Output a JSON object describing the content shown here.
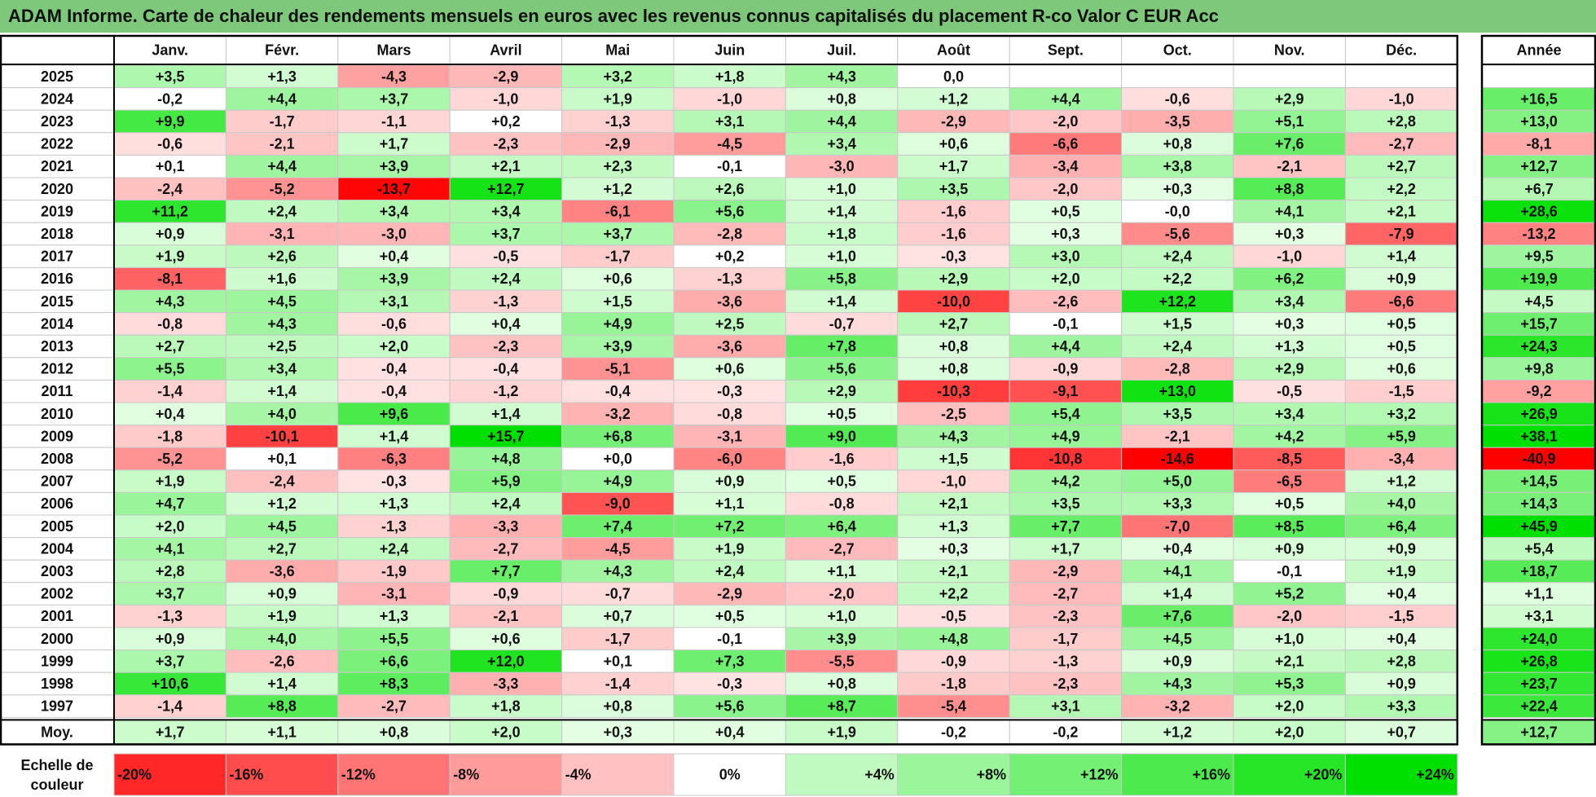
{
  "title": "ADAM Informe. Carte de chaleur des rendements mensuels en euros avec les revenus connus capitalisés du placement R-co Valor C EUR Acc",
  "chart_data": {
    "type": "heatmap",
    "title": "ADAM Informe. Carte de chaleur des rendements mensuels en euros avec les revenus connus capitalisés du placement R-co Valor C EUR Acc",
    "columns": [
      "Janv.",
      "Févr.",
      "Mars",
      "Avril",
      "Mai",
      "Juin",
      "Juil.",
      "Août",
      "Sept.",
      "Oct.",
      "Nov.",
      "Déc."
    ],
    "year_column_label": "Année",
    "average_row_label": "Moy.",
    "rows": [
      {
        "year": "2025",
        "values": [
          "+3,5",
          "+1,3",
          "-4,3",
          "-2,9",
          "+3,2",
          "+1,8",
          "+4,3",
          "0,0",
          "",
          "",
          "",
          ""
        ],
        "annual": ""
      },
      {
        "year": "2024",
        "values": [
          "-0,2",
          "+4,4",
          "+3,7",
          "-1,0",
          "+1,9",
          "-1,0",
          "+0,8",
          "+1,2",
          "+4,4",
          "-0,6",
          "+2,9",
          "-1,0"
        ],
        "annual": "+16,5"
      },
      {
        "year": "2023",
        "values": [
          "+9,9",
          "-1,7",
          "-1,1",
          "+0,2",
          "-1,3",
          "+3,1",
          "+4,4",
          "-2,9",
          "-2,0",
          "-3,5",
          "+5,1",
          "+2,8"
        ],
        "annual": "+13,0"
      },
      {
        "year": "2022",
        "values": [
          "-0,6",
          "-2,1",
          "+1,7",
          "-2,3",
          "-2,9",
          "-4,5",
          "+3,4",
          "+0,6",
          "-6,6",
          "+0,8",
          "+7,6",
          "-2,7"
        ],
        "annual": "-8,1"
      },
      {
        "year": "2021",
        "values": [
          "+0,1",
          "+4,4",
          "+3,9",
          "+2,1",
          "+2,3",
          "-0,1",
          "-3,0",
          "+1,7",
          "-3,4",
          "+3,8",
          "-2,1",
          "+2,7"
        ],
        "annual": "+12,7"
      },
      {
        "year": "2020",
        "values": [
          "-2,4",
          "-5,2",
          "-13,7",
          "+12,7",
          "+1,2",
          "+2,6",
          "+1,0",
          "+3,5",
          "-2,0",
          "+0,3",
          "+8,8",
          "+2,2"
        ],
        "annual": "+6,7"
      },
      {
        "year": "2019",
        "values": [
          "+11,2",
          "+2,4",
          "+3,4",
          "+3,4",
          "-6,1",
          "+5,6",
          "+1,4",
          "-1,6",
          "+0,5",
          "-0,0",
          "+4,1",
          "+2,1"
        ],
        "annual": "+28,6"
      },
      {
        "year": "2018",
        "values": [
          "+0,9",
          "-3,1",
          "-3,0",
          "+3,7",
          "+3,7",
          "-2,8",
          "+1,8",
          "-1,6",
          "+0,3",
          "-5,6",
          "+0,3",
          "-7,9"
        ],
        "annual": "-13,2"
      },
      {
        "year": "2017",
        "values": [
          "+1,9",
          "+2,6",
          "+0,4",
          "-0,5",
          "-1,7",
          "+0,2",
          "+1,0",
          "-0,3",
          "+3,0",
          "+2,4",
          "-1,0",
          "+1,4"
        ],
        "annual": "+9,5"
      },
      {
        "year": "2016",
        "values": [
          "-8,1",
          "+1,6",
          "+3,9",
          "+2,4",
          "+0,6",
          "-1,3",
          "+5,8",
          "+2,9",
          "+2,0",
          "+2,2",
          "+6,2",
          "+0,9"
        ],
        "annual": "+19,9"
      },
      {
        "year": "2015",
        "values": [
          "+4,3",
          "+4,5",
          "+3,1",
          "-1,3",
          "+1,5",
          "-3,6",
          "+1,4",
          "-10,0",
          "-2,6",
          "+12,2",
          "+3,4",
          "-6,6"
        ],
        "annual": "+4,5"
      },
      {
        "year": "2014",
        "values": [
          "-0,8",
          "+4,3",
          "-0,6",
          "+0,4",
          "+4,9",
          "+2,5",
          "-0,7",
          "+2,7",
          "-0,1",
          "+1,5",
          "+0,3",
          "+0,5"
        ],
        "annual": "+15,7"
      },
      {
        "year": "2013",
        "values": [
          "+2,7",
          "+2,5",
          "+2,0",
          "-2,3",
          "+3,9",
          "-3,6",
          "+7,8",
          "+0,8",
          "+4,4",
          "+2,4",
          "+1,3",
          "+0,5"
        ],
        "annual": "+24,3"
      },
      {
        "year": "2012",
        "values": [
          "+5,5",
          "+3,4",
          "-0,4",
          "-0,4",
          "-5,1",
          "+0,6",
          "+5,6",
          "+0,8",
          "-0,9",
          "-2,8",
          "+2,9",
          "+0,6"
        ],
        "annual": "+9,8"
      },
      {
        "year": "2011",
        "values": [
          "-1,4",
          "+1,4",
          "-0,4",
          "-1,2",
          "-0,4",
          "-0,3",
          "+2,9",
          "-10,3",
          "-9,1",
          "+13,0",
          "-0,5",
          "-1,5"
        ],
        "annual": "-9,2"
      },
      {
        "year": "2010",
        "values": [
          "+0,4",
          "+4,0",
          "+9,6",
          "+1,4",
          "-3,2",
          "-0,8",
          "+0,5",
          "-2,5",
          "+5,4",
          "+3,5",
          "+3,4",
          "+3,2"
        ],
        "annual": "+26,9"
      },
      {
        "year": "2009",
        "values": [
          "-1,8",
          "-10,1",
          "+1,4",
          "+15,7",
          "+6,8",
          "-3,1",
          "+9,0",
          "+4,3",
          "+4,9",
          "-2,1",
          "+4,2",
          "+5,9"
        ],
        "annual": "+38,1"
      },
      {
        "year": "2008",
        "values": [
          "-5,2",
          "+0,1",
          "-6,3",
          "+4,8",
          "+0,0",
          "-6,0",
          "-1,6",
          "+1,5",
          "-10,8",
          "-14,6",
          "-8,5",
          "-3,4"
        ],
        "annual": "-40,9"
      },
      {
        "year": "2007",
        "values": [
          "+1,9",
          "-2,4",
          "-0,3",
          "+5,9",
          "+4,9",
          "+0,9",
          "+0,5",
          "-1,0",
          "+4,2",
          "+5,0",
          "-6,5",
          "+1,2"
        ],
        "annual": "+14,5"
      },
      {
        "year": "2006",
        "values": [
          "+4,7",
          "+1,2",
          "+1,3",
          "+2,4",
          "-9,0",
          "+1,1",
          "-0,8",
          "+2,1",
          "+3,5",
          "+3,3",
          "+0,5",
          "+4,0"
        ],
        "annual": "+14,3"
      },
      {
        "year": "2005",
        "values": [
          "+2,0",
          "+4,5",
          "-1,3",
          "-3,3",
          "+7,4",
          "+7,2",
          "+6,4",
          "+1,3",
          "+7,7",
          "-7,0",
          "+8,5",
          "+6,4"
        ],
        "annual": "+45,9"
      },
      {
        "year": "2004",
        "values": [
          "+4,1",
          "+2,7",
          "+2,4",
          "-2,7",
          "-4,5",
          "+1,9",
          "-2,7",
          "+0,3",
          "+1,7",
          "+0,4",
          "+0,9",
          "+0,9"
        ],
        "annual": "+5,4"
      },
      {
        "year": "2003",
        "values": [
          "+2,8",
          "-3,6",
          "-1,9",
          "+7,7",
          "+4,3",
          "+2,4",
          "+1,1",
          "+2,1",
          "-2,9",
          "+4,1",
          "-0,1",
          "+1,9"
        ],
        "annual": "+18,7"
      },
      {
        "year": "2002",
        "values": [
          "+3,7",
          "+0,9",
          "-3,1",
          "-0,9",
          "-0,7",
          "-2,9",
          "-2,0",
          "+2,2",
          "-2,7",
          "+1,4",
          "+5,2",
          "+0,4"
        ],
        "annual": "+1,1"
      },
      {
        "year": "2001",
        "values": [
          "-1,3",
          "+1,9",
          "+1,3",
          "-2,1",
          "+0,7",
          "+0,5",
          "+1,0",
          "-0,5",
          "-2,3",
          "+7,6",
          "-2,0",
          "-1,5"
        ],
        "annual": "+3,1"
      },
      {
        "year": "2000",
        "values": [
          "+0,9",
          "+4,0",
          "+5,5",
          "+0,6",
          "-1,7",
          "-0,1",
          "+3,9",
          "+4,8",
          "-1,7",
          "+4,5",
          "+1,0",
          "+0,4"
        ],
        "annual": "+24,0"
      },
      {
        "year": "1999",
        "values": [
          "+3,7",
          "-2,6",
          "+6,6",
          "+12,0",
          "+0,1",
          "+7,3",
          "-5,5",
          "-0,9",
          "-1,3",
          "+0,9",
          "+2,1",
          "+2,8"
        ],
        "annual": "+26,8"
      },
      {
        "year": "1998",
        "values": [
          "+10,6",
          "+1,4",
          "+8,3",
          "-3,3",
          "-1,4",
          "-0,3",
          "+0,8",
          "-1,8",
          "-2,3",
          "+4,3",
          "+5,3",
          "+0,9"
        ],
        "annual": "+23,7"
      },
      {
        "year": "1997",
        "values": [
          "-1,4",
          "+8,8",
          "-2,7",
          "+1,8",
          "+0,8",
          "+5,6",
          "+8,7",
          "-5,4",
          "+3,1",
          "-3,2",
          "+2,0",
          "+3,3"
        ],
        "annual": "+22,4"
      }
    ],
    "averages": {
      "values": [
        "+1,7",
        "+1,1",
        "+0,8",
        "+2,0",
        "+0,3",
        "+0,4",
        "+1,9",
        "-0,2",
        "-0,2",
        "+1,2",
        "+2,0",
        "+0,7"
      ],
      "annual": "+12,7"
    },
    "color_scale": {
      "label": "Echelle de couleur",
      "steps": [
        "-20%",
        "-16%",
        "-12%",
        "-8%",
        "-4%",
        "0%",
        "+4%",
        "+8%",
        "+12%",
        "+16%",
        "+20%",
        "+24%"
      ]
    },
    "colors": {
      "title_bar": "#7dc87a",
      "negative_max": "#ff0000",
      "neutral": "#ffffff",
      "positive_max": "#00e000",
      "grid_line": "#c8c8c8",
      "frame": "#000000"
    }
  }
}
